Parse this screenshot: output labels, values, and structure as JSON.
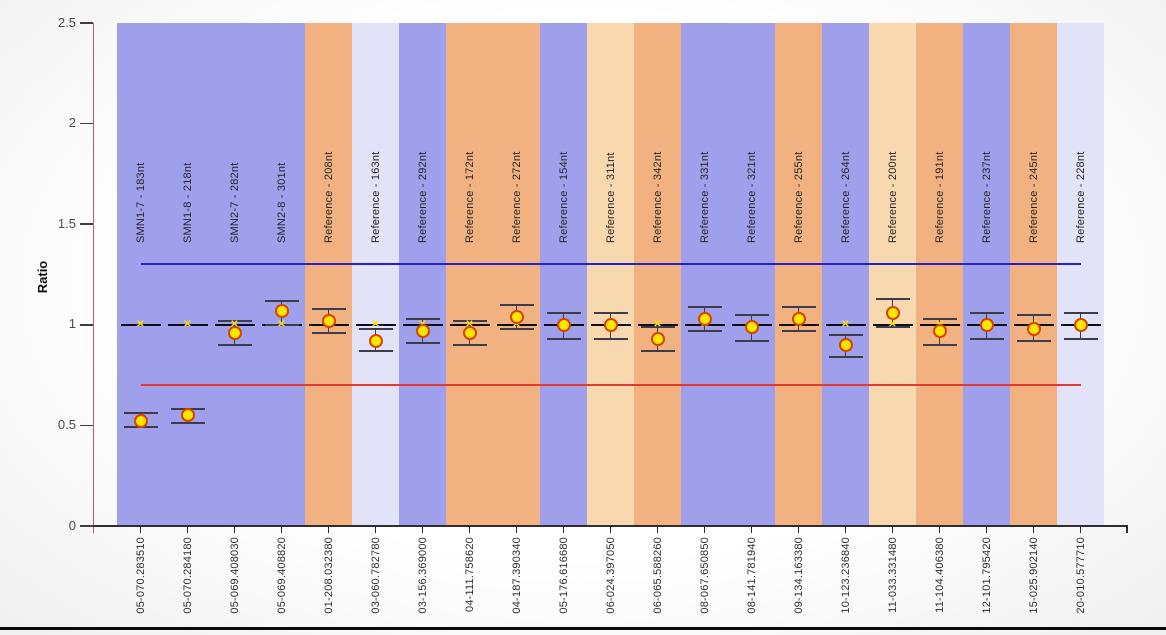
{
  "chart_data": {
    "type": "scatter",
    "title": "",
    "ylabel": "Ratio",
    "xlabel": "",
    "ylim": [
      0,
      2.5
    ],
    "yticks": [
      2.5,
      2,
      1.5,
      1,
      0.5,
      0
    ],
    "grid": false,
    "legend": "none",
    "upper_threshold": {
      "value": 1.3,
      "color": "#2323c8"
    },
    "lower_threshold": {
      "value": 0.7,
      "color": "#e43a32"
    },
    "reference_ratio": 1.0,
    "band_palette": {
      "blue": "#9f9fec",
      "orange": "#f2b181",
      "lavender": "#e2e2f8",
      "cream": "#f8d8ae"
    },
    "marker": {
      "fill": "#ffe600",
      "stroke": "#d64500",
      "reference_mark": "✕",
      "reference_mark_color": "#ffe000"
    },
    "line_colors": {
      "reference_line": "#0d0d18",
      "error_bar": "#3c3c4a",
      "y_axis": "#c05c5c",
      "x_axis": "#2e2e2e"
    },
    "points": [
      {
        "x_label": "05-070.283510",
        "probe": "SMN1-7 - 183nt",
        "band": "blue",
        "value": 0.52,
        "err_low": 0.49,
        "err_high": 0.56
      },
      {
        "x_label": "05-070.284180",
        "probe": "SMN1-8 - 218nt",
        "band": "blue",
        "value": 0.55,
        "err_low": 0.51,
        "err_high": 0.58
      },
      {
        "x_label": "05-069.408030",
        "probe": "SMN2-7 - 282nt",
        "band": "blue",
        "value": 0.96,
        "err_low": 0.9,
        "err_high": 1.02
      },
      {
        "x_label": "05-069.408820",
        "probe": "SMN2-8 - 301nt",
        "band": "blue",
        "value": 1.07,
        "err_low": 1.0,
        "err_high": 1.12
      },
      {
        "x_label": "01-208.032380",
        "probe": "Reference - 208nt",
        "band": "orange",
        "value": 1.02,
        "err_low": 0.96,
        "err_high": 1.08
      },
      {
        "x_label": "03-060.782780",
        "probe": "Reference - 163nt",
        "band": "lavender",
        "value": 0.92,
        "err_low": 0.87,
        "err_high": 0.98
      },
      {
        "x_label": "03-156.369000",
        "probe": "Reference - 292nt",
        "band": "blue",
        "value": 0.97,
        "err_low": 0.91,
        "err_high": 1.03
      },
      {
        "x_label": "04-111.758620",
        "probe": "Reference - 172nt",
        "band": "orange",
        "value": 0.96,
        "err_low": 0.9,
        "err_high": 1.02
      },
      {
        "x_label": "04-187.390340",
        "probe": "Reference - 272nt",
        "band": "orange",
        "value": 1.04,
        "err_low": 0.98,
        "err_high": 1.1
      },
      {
        "x_label": "05-176.616680",
        "probe": "Reference - 154nt",
        "band": "blue",
        "value": 1.0,
        "err_low": 0.93,
        "err_high": 1.06
      },
      {
        "x_label": "06-024.397050",
        "probe": "Reference - 311nt",
        "band": "cream",
        "value": 1.0,
        "err_low": 0.93,
        "err_high": 1.06
      },
      {
        "x_label": "06-065.588260",
        "probe": "Reference - 342nt",
        "band": "orange",
        "value": 0.93,
        "err_low": 0.87,
        "err_high": 0.99
      },
      {
        "x_label": "08-067.650850",
        "probe": "Reference - 331nt",
        "band": "blue",
        "value": 1.03,
        "err_low": 0.97,
        "err_high": 1.09
      },
      {
        "x_label": "08-141.781940",
        "probe": "Reference - 321nt",
        "band": "blue",
        "value": 0.99,
        "err_low": 0.92,
        "err_high": 1.05
      },
      {
        "x_label": "09-134.163380",
        "probe": "Reference - 255nt",
        "band": "orange",
        "value": 1.03,
        "err_low": 0.97,
        "err_high": 1.09
      },
      {
        "x_label": "10-123.236840",
        "probe": "Reference - 264nt",
        "band": "blue",
        "value": 0.9,
        "err_low": 0.84,
        "err_high": 0.95
      },
      {
        "x_label": "11-033.331480",
        "probe": "Reference - 200nt",
        "band": "cream",
        "value": 1.06,
        "err_low": 0.99,
        "err_high": 1.13
      },
      {
        "x_label": "11-104.406380",
        "probe": "Reference - 191nt",
        "band": "orange",
        "value": 0.97,
        "err_low": 0.9,
        "err_high": 1.03
      },
      {
        "x_label": "12-101.795420",
        "probe": "Reference - 237nt",
        "band": "blue",
        "value": 1.0,
        "err_low": 0.93,
        "err_high": 1.06
      },
      {
        "x_label": "15-025.902140",
        "probe": "Reference - 245nt",
        "band": "orange",
        "value": 0.98,
        "err_low": 0.92,
        "err_high": 1.05
      },
      {
        "x_label": "20-010.577710",
        "probe": "Reference - 228nt",
        "band": "lavender",
        "value": 1.0,
        "err_low": 0.93,
        "err_high": 1.06
      }
    ]
  }
}
